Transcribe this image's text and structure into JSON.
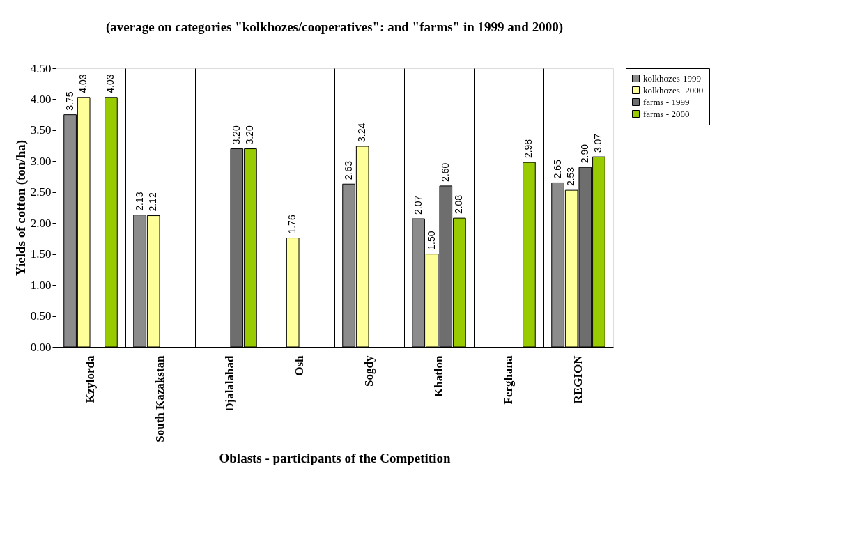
{
  "chart_data": {
    "type": "bar",
    "title": "(average on categories \"kolkhozes/cooperatives\": and \"farms\" in 1999 and 2000)",
    "xlabel": "Oblasts - participants of the Competition",
    "ylabel": "Yields of cotton (ton/ha)",
    "categories": [
      "Kzylorda",
      "South Kazakstan",
      "Djalalabad",
      "Osh",
      "Sogdy",
      "Khatlon",
      "Ferghana",
      "REGION"
    ],
    "series": [
      {
        "name": "kolkhozes-1999",
        "color": "#8c8c8c",
        "values": [
          3.75,
          2.13,
          null,
          null,
          2.63,
          2.07,
          null,
          2.65
        ],
        "value_labels": [
          "3.75",
          "2.13",
          null,
          null,
          "2.63",
          "2.07",
          null,
          "2.65"
        ]
      },
      {
        "name": "kolkhozes -2000",
        "color": "#ffff99",
        "values": [
          4.03,
          2.12,
          null,
          1.76,
          3.24,
          1.5,
          null,
          2.53
        ],
        "value_labels": [
          "4.03",
          "2.12",
          null,
          "1.76",
          "3.24",
          "1.50",
          null,
          "2.53"
        ]
      },
      {
        "name": "farms - 1999",
        "color": "#6e6e6e",
        "values": [
          null,
          null,
          3.2,
          null,
          null,
          2.6,
          null,
          2.9
        ],
        "value_labels": [
          null,
          null,
          "3.20",
          null,
          null,
          "2.60",
          null,
          "2.90"
        ]
      },
      {
        "name": "farms - 2000",
        "color": "#99cc00",
        "values": [
          4.03,
          null,
          3.2,
          null,
          null,
          2.08,
          2.98,
          3.07
        ],
        "value_labels": [
          "4.03",
          null,
          "3.20",
          null,
          null,
          "2.08",
          "2.98",
          "3.07"
        ]
      }
    ],
    "ylim": [
      0,
      4.5
    ],
    "yticks": [
      {
        "value": 0,
        "label": "0.00"
      },
      {
        "value": 0.5,
        "label": "0.50"
      },
      {
        "value": 1,
        "label": "1.00"
      },
      {
        "value": 1.5,
        "label": "1.50"
      },
      {
        "value": 2,
        "label": "2.00"
      },
      {
        "value": 2.5,
        "label": "2.50"
      },
      {
        "value": 3,
        "label": "3.00"
      },
      {
        "value": 3.5,
        "label": "3.50"
      },
      {
        "value": 4,
        "label": "4.00"
      },
      {
        "value": 4.5,
        "label": "4.50"
      }
    ],
    "grid": "x",
    "legend": "right"
  }
}
